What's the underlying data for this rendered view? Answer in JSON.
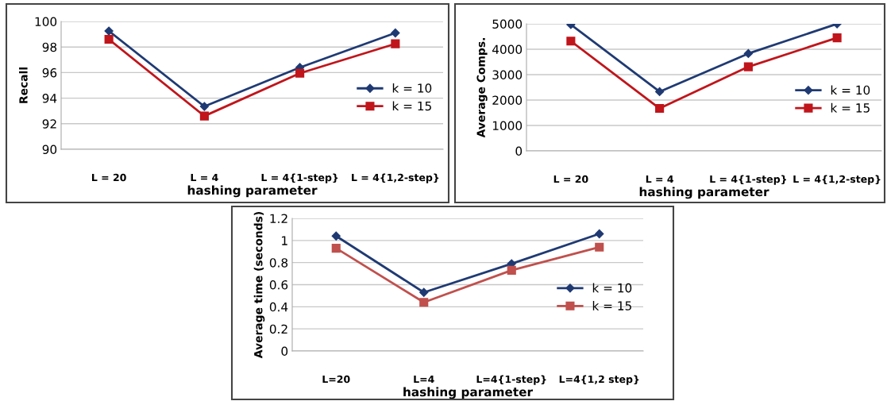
{
  "chart_data": [
    {
      "type": "line",
      "xlabel": "hashing parameter",
      "ylabel": "Recall",
      "categories": [
        "L = 20",
        "L = 4",
        "L = 4{1-step}",
        "L = 4{1,2-step}"
      ],
      "series": [
        {
          "name": "k = 10",
          "color": "#1f3a73",
          "marker": "diamond",
          "values": [
            99.25,
            93.35,
            96.4,
            99.1
          ]
        },
        {
          "name": "k = 15",
          "color": "#c0151b",
          "marker": "square",
          "values": [
            98.6,
            92.6,
            95.95,
            98.25
          ]
        }
      ],
      "ylim": [
        90,
        100
      ],
      "yticks": [
        90,
        92,
        94,
        96,
        98,
        100
      ],
      "grid": "y",
      "legend": "right"
    },
    {
      "type": "line",
      "xlabel": "hashing parameter",
      "ylabel": "Average Comps.",
      "categories": [
        "L = 20",
        "L = 4",
        "L = 4{1-step}",
        "L = 4{1,2-step}"
      ],
      "series": [
        {
          "name": "k = 10",
          "color": "#1f3a73",
          "marker": "diamond",
          "values": [
            4970,
            2330,
            3830,
            5000
          ]
        },
        {
          "name": "k = 15",
          "color": "#c0151b",
          "marker": "square",
          "values": [
            4320,
            1670,
            3310,
            4450
          ]
        }
      ],
      "ylim": [
        0,
        5000
      ],
      "yticks": [
        0,
        1000,
        2000,
        3000,
        4000,
        5000
      ],
      "grid": "y",
      "legend": "right"
    },
    {
      "type": "line",
      "xlabel": "hashing parameter",
      "ylabel": "Average time (seconds)",
      "categories": [
        "L=20",
        "L=4",
        "L=4{1-step}",
        "L=4{1,2 step}"
      ],
      "series": [
        {
          "name": "k = 10",
          "color": "#1f3a73",
          "marker": "diamond",
          "values": [
            1.04,
            0.53,
            0.79,
            1.06
          ]
        },
        {
          "name": "k = 15",
          "color": "#c0504d",
          "marker": "square",
          "values": [
            0.93,
            0.44,
            0.73,
            0.94
          ]
        }
      ],
      "ylim": [
        0,
        1.2
      ],
      "yticks": [
        0,
        0.2,
        0.4,
        0.6,
        0.8,
        1,
        1.2
      ],
      "grid": "y",
      "legend": "right"
    }
  ]
}
